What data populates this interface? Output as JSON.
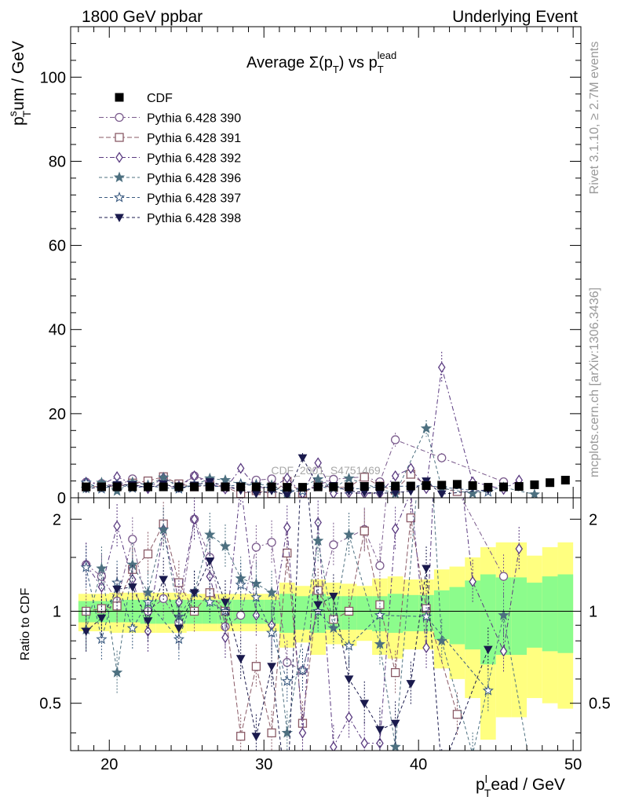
{
  "header": {
    "left": "1800 GeV ppbar",
    "right": "Underlying Event"
  },
  "side_text": {
    "rivet": "Rivet 3.1.10, ≥ 2.7M events",
    "mcplots": "mcplots.cern.ch [arXiv:1306.3436]"
  },
  "watermark": "CDF_2001_S4751469",
  "ratio_ylabel": "Ratio to CDF",
  "chart_data": {
    "type": "scatter",
    "title": "Average Σ(p_T) vs p_T^lead",
    "title_main": "Average Σ(p",
    "title_sub_T": "T",
    "title_vs": ") vs p",
    "title_sup": "lead",
    "ylabel_main": "p",
    "ylabel_sup": "s",
    "ylabel_sub": "T",
    "ylabel_rest": "um / GeV",
    "xlabel_main": "p",
    "xlabel_sup": "l",
    "xlabel_sub": "T",
    "xlabel_rest": "ead / GeV",
    "xlim": [
      17.5,
      50.5
    ],
    "ylim": [
      0,
      112
    ],
    "ratio_ylim": [
      0.35,
      2.35
    ],
    "x_ticks": [
      20,
      30,
      40,
      50
    ],
    "y_ticks": [
      0,
      20,
      40,
      60,
      80,
      100
    ],
    "ratio_ticks": [
      0.5,
      1,
      2
    ],
    "legend_position": "top-left",
    "data": {
      "name": "CDF",
      "x": [
        18.5,
        19.5,
        20.5,
        21.5,
        22.5,
        23.5,
        24.5,
        25.5,
        26.5,
        27.5,
        28.5,
        29.5,
        30.5,
        31.5,
        32.5,
        33.5,
        34.5,
        35.5,
        36.5,
        37.5,
        38.5,
        39.5,
        40.5,
        41.5,
        42.5,
        43.5,
        44.5,
        45.5,
        46.5,
        47.5,
        48.5,
        49.5
      ],
      "y": [
        2.6,
        2.6,
        2.6,
        2.6,
        2.6,
        2.6,
        2.6,
        2.6,
        2.6,
        2.6,
        2.6,
        2.6,
        2.6,
        2.5,
        2.5,
        2.6,
        2.6,
        2.6,
        2.7,
        2.7,
        2.8,
        2.8,
        2.9,
        3.0,
        3.2,
        2.9,
        2.5,
        2.6,
        2.7,
        3.1,
        3.6,
        4.2
      ]
    },
    "bands": [
      {
        "x0": 18,
        "x1": 19,
        "g": [
          0.92,
          1.08
        ],
        "y": [
          0.86,
          1.14
        ]
      },
      {
        "x0": 19,
        "x1": 20,
        "g": [
          0.92,
          1.08
        ],
        "y": [
          0.86,
          1.14
        ]
      },
      {
        "x0": 20,
        "x1": 21,
        "g": [
          0.92,
          1.09
        ],
        "y": [
          0.85,
          1.15
        ]
      },
      {
        "x0": 21,
        "x1": 22,
        "g": [
          0.92,
          1.09
        ],
        "y": [
          0.85,
          1.15
        ]
      },
      {
        "x0": 22,
        "x1": 23,
        "g": [
          0.91,
          1.09
        ],
        "y": [
          0.85,
          1.15
        ]
      },
      {
        "x0": 23,
        "x1": 24,
        "g": [
          0.91,
          1.09
        ],
        "y": [
          0.85,
          1.15
        ]
      },
      {
        "x0": 24,
        "x1": 25,
        "g": [
          0.91,
          1.09
        ],
        "y": [
          0.85,
          1.15
        ]
      },
      {
        "x0": 25,
        "x1": 26,
        "g": [
          0.91,
          1.09
        ],
        "y": [
          0.86,
          1.14
        ]
      },
      {
        "x0": 26,
        "x1": 27,
        "g": [
          0.91,
          1.09
        ],
        "y": [
          0.86,
          1.14
        ]
      },
      {
        "x0": 27,
        "x1": 28,
        "g": [
          0.91,
          1.09
        ],
        "y": [
          0.86,
          1.14
        ]
      },
      {
        "x0": 28,
        "x1": 29,
        "g": [
          0.91,
          1.09
        ],
        "y": [
          0.86,
          1.14
        ]
      },
      {
        "x0": 29,
        "x1": 30,
        "g": [
          0.91,
          1.09
        ],
        "y": [
          0.86,
          1.14
        ]
      },
      {
        "x0": 30,
        "x1": 31,
        "g": [
          0.91,
          1.09
        ],
        "y": [
          0.86,
          1.14
        ]
      },
      {
        "x0": 31,
        "x1": 32,
        "g": [
          0.85,
          1.14
        ],
        "y": [
          0.76,
          1.24
        ]
      },
      {
        "x0": 32,
        "x1": 33,
        "g": [
          0.87,
          1.12
        ],
        "y": [
          0.79,
          1.21
        ]
      },
      {
        "x0": 33,
        "x1": 34,
        "g": [
          0.85,
          1.14
        ],
        "y": [
          0.72,
          1.27
        ]
      },
      {
        "x0": 34,
        "x1": 35,
        "g": [
          0.87,
          1.12
        ],
        "y": [
          0.78,
          1.24
        ]
      },
      {
        "x0": 35,
        "x1": 36,
        "g": [
          0.87,
          1.12
        ],
        "y": [
          0.77,
          1.23
        ]
      },
      {
        "x0": 36,
        "x1": 37,
        "g": [
          0.87,
          1.12
        ],
        "y": [
          0.8,
          1.21
        ]
      },
      {
        "x0": 37,
        "x1": 38,
        "g": [
          0.86,
          1.12
        ],
        "y": [
          0.72,
          1.28
        ]
      },
      {
        "x0": 38,
        "x1": 39,
        "g": [
          0.85,
          1.14
        ],
        "y": [
          0.7,
          1.3
        ]
      },
      {
        "x0": 39,
        "x1": 40,
        "g": [
          0.86,
          1.13
        ],
        "y": [
          0.75,
          1.27
        ]
      },
      {
        "x0": 40,
        "x1": 41,
        "g": [
          0.86,
          1.13
        ],
        "y": [
          0.75,
          1.27
        ]
      },
      {
        "x0": 41,
        "x1": 42,
        "g": [
          0.81,
          1.17
        ],
        "y": [
          0.65,
          1.37
        ]
      },
      {
        "x0": 42,
        "x1": 43,
        "g": [
          0.78,
          1.2
        ],
        "y": [
          0.6,
          1.4
        ]
      },
      {
        "x0": 43,
        "x1": 44,
        "g": [
          0.75,
          1.26
        ],
        "y": [
          0.52,
          1.5
        ]
      },
      {
        "x0": 44,
        "x1": 45,
        "g": [
          0.67,
          1.32
        ],
        "y": [
          0.38,
          1.62
        ]
      },
      {
        "x0": 45,
        "x1": 46,
        "g": [
          0.72,
          1.29
        ],
        "y": [
          0.45,
          1.68
        ]
      },
      {
        "x0": 46,
        "x1": 47,
        "g": [
          0.72,
          1.29
        ],
        "y": [
          0.45,
          1.68
        ]
      },
      {
        "x0": 47,
        "x1": 48,
        "g": [
          0.76,
          1.24
        ],
        "y": [
          0.52,
          1.52
        ]
      },
      {
        "x0": 48,
        "x1": 49,
        "g": [
          0.74,
          1.3
        ],
        "y": [
          0.5,
          1.62
        ]
      },
      {
        "x0": 49,
        "x1": 50,
        "g": [
          0.73,
          1.32
        ],
        "y": [
          0.48,
          1.68
        ]
      }
    ],
    "series": [
      {
        "name": "Pythia 6.428 390",
        "color": "#7a5a8c",
        "marker": "circle",
        "dash": "6,3,2,3",
        "x": [
          18.5,
          19.5,
          20.5,
          21.5,
          22.5,
          23.5,
          24.5,
          25.5,
          26.5,
          27.5,
          28.5,
          29.5,
          30.5,
          31.5,
          32.5,
          34.5,
          36.5,
          37.5,
          38.5,
          41.5,
          45.5
        ],
        "y": [
          3.7,
          3.4,
          2.8,
          4.5,
          2.6,
          2.9,
          2.4,
          5.2,
          3.9,
          2.3,
          2.5,
          4.2,
          4.5,
          1.7,
          1.6,
          4.4,
          5.0,
          3.8,
          13.8,
          9.5,
          3.8
        ],
        "r": [
          1.42,
          1.3,
          1.08,
          1.72,
          1.0,
          1.1,
          0.92,
          2.0,
          1.5,
          0.89,
          0.97,
          1.62,
          1.68,
          0.68,
          0.64,
          1.65,
          1.85,
          1.41,
          4.9,
          3.1,
          1.3
        ]
      },
      {
        "name": "Pythia 6.428 391",
        "color": "#8a5a66",
        "marker": "square",
        "dash": "6,3",
        "x": [
          18.5,
          19.5,
          20.5,
          21.5,
          22.5,
          23.5,
          24.5,
          25.5,
          26.5,
          27.5,
          28.5,
          29.5,
          30.5,
          31.5,
          32.5,
          33.5,
          34.5,
          35.5,
          36.5,
          37.5,
          38.5,
          39.5,
          40.5,
          42.5
        ],
        "y": [
          2.6,
          2.7,
          2.7,
          3.5,
          4.0,
          5.0,
          3.3,
          2.6,
          3.0,
          2.6,
          1.0,
          1.7,
          1.0,
          3.9,
          1.1,
          3.0,
          2.4,
          2.6,
          4.9,
          2.8,
          1.8,
          5.6,
          3.0,
          1.5
        ],
        "r": [
          1.0,
          1.02,
          1.04,
          1.37,
          1.54,
          1.93,
          1.24,
          1.0,
          1.15,
          1.0,
          0.39,
          0.66,
          0.4,
          1.55,
          0.43,
          1.17,
          0.94,
          1.0,
          1.83,
          1.05,
          0.63,
          2.02,
          1.02,
          0.46
        ]
      },
      {
        "name": "Pythia 6.428 392",
        "color": "#5a3a80",
        "marker": "diamond",
        "dash": "6,3,2,3",
        "x": [
          18.5,
          19.5,
          20.5,
          21.5,
          22.5,
          23.5,
          24.5,
          25.5,
          26.5,
          27.5,
          28.5,
          29.5,
          30.5,
          31.5,
          32.5,
          33.5,
          34.5,
          35.5,
          36.5,
          37.5,
          38.5,
          39.5,
          40.5,
          41.5,
          43.5,
          45.5,
          46.5
        ],
        "y": [
          3.7,
          3.1,
          5.0,
          3.3,
          2.2,
          4.8,
          2.8,
          5.2,
          3.4,
          2.1,
          7.0,
          2.5,
          2.3,
          4.7,
          1.0,
          8.3,
          1.0,
          1.2,
          1.0,
          1.0,
          5.2,
          7.0,
          2.2,
          31.0,
          3.8,
          2.0,
          4.2
        ],
        "r": [
          1.42,
          1.2,
          1.9,
          1.27,
          0.86,
          1.85,
          1.07,
          2.0,
          1.3,
          0.82,
          2.6,
          0.97,
          0.9,
          1.88,
          0.4,
          1.95,
          0.36,
          0.45,
          0.37,
          0.37,
          1.86,
          2.45,
          0.76,
          10.3,
          1.25,
          0.74,
          1.6
        ]
      },
      {
        "name": "Pythia 6.428 396",
        "color": "#4d7080",
        "marker": "star",
        "dash": "4,3",
        "x": [
          18.5,
          19.5,
          20.5,
          21.5,
          22.5,
          23.5,
          24.5,
          25.5,
          26.5,
          27.5,
          28.5,
          29.5,
          30.5,
          31.5,
          33.5,
          34.5,
          35.5,
          37.5,
          38.5,
          40.5,
          41.5,
          43.5,
          45.5,
          47.5
        ],
        "y": [
          2.2,
          3.6,
          1.6,
          3.7,
          3.0,
          4.8,
          2.5,
          3.0,
          4.6,
          4.2,
          3.3,
          3.2,
          3.0,
          1.0,
          4.4,
          2.3,
          4.6,
          2.1,
          1.0,
          16.5,
          2.3,
          1.0,
          2.5,
          0.8
        ],
        "r": [
          0.87,
          1.38,
          0.63,
          1.42,
          1.15,
          1.85,
          0.96,
          1.15,
          1.78,
          1.63,
          1.28,
          1.23,
          1.15,
          0.4,
          1.7,
          0.88,
          1.78,
          0.78,
          0.36,
          5.8,
          0.8,
          0.34,
          0.97,
          0.26
        ]
      },
      {
        "name": "Pythia 6.428 397",
        "color": "#3a5a80",
        "marker": "star-open",
        "dash": "4,3",
        "x": [
          18.5,
          19.5,
          20.5,
          21.5,
          22.5,
          24.5,
          25.5,
          26.5,
          27.5,
          28.5,
          29.5,
          30.5,
          31.5,
          32.5,
          33.5,
          35.5,
          37.5,
          40.5,
          44.5
        ],
        "y": [
          3.6,
          2.1,
          3.2,
          2.3,
          2.8,
          2.1,
          3.0,
          2.8,
          2.6,
          3.2,
          2.9,
          2.2,
          1.5,
          1.6,
          2.6,
          2.0,
          2.6,
          2.9,
          1.4
        ],
        "r": [
          1.39,
          0.81,
          1.24,
          0.88,
          1.07,
          0.81,
          1.15,
          1.07,
          1.0,
          1.22,
          1.11,
          0.85,
          0.59,
          0.64,
          1.0,
          0.77,
          0.97,
          0.96,
          0.55
        ]
      },
      {
        "name": "Pythia 6.428 398",
        "color": "#1a1a4d",
        "marker": "triangle-down",
        "dash": "4,3",
        "x": [
          18.5,
          19.5,
          20.5,
          21.5,
          22.5,
          23.5,
          24.5,
          25.5,
          26.5,
          27.5,
          28.5,
          29.5,
          30.5,
          31.5,
          32.5,
          33.5,
          34.5,
          35.5,
          36.5,
          37.5,
          38.5,
          39.5,
          40.5,
          41.5,
          44.5
        ],
        "y": [
          2.2,
          2.5,
          3.1,
          3.1,
          2.4,
          3.3,
          2.3,
          3.0,
          3.8,
          2.8,
          1.8,
          1.0,
          1.7,
          0.6,
          9.5,
          2.7,
          2.9,
          1.6,
          1.3,
          1.1,
          1.2,
          1.6,
          4.0,
          0.9,
          1.9
        ],
        "r": [
          0.86,
          0.95,
          1.18,
          1.2,
          0.93,
          1.27,
          0.88,
          1.15,
          1.46,
          1.07,
          0.7,
          0.39,
          0.66,
          0.24,
          3.8,
          1.05,
          1.12,
          0.6,
          0.5,
          0.41,
          0.43,
          0.58,
          1.38,
          0.3,
          0.75
        ]
      }
    ]
  }
}
